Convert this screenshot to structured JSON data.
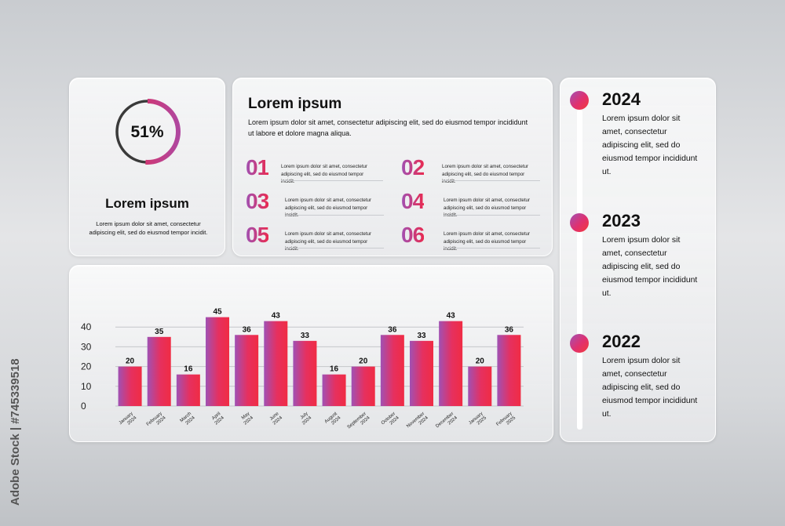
{
  "summary": {
    "percent": 51,
    "percent_label": "51%",
    "title": "Lorem ipsum",
    "text": "Lorem ipsum dolor sit amet, consectetur adipiscing elit, sed do eiusmod tempor incidit."
  },
  "features": {
    "title": "Lorem ipsum",
    "text": "Lorem ipsum dolor sit amet, consectetur adipiscing elit, sed do eiusmod tempor incididunt ut labore et dolore magna aliqua.",
    "items": [
      {
        "num": "01",
        "text": "Lorem ipsum dolor sit amet, consectetur adipiscing elit, sed do eiusmod tempor incidit."
      },
      {
        "num": "02",
        "text": "Lorem ipsum dolor sit amet, consectetur adipiscing elit, sed do eiusmod tempor incidit."
      },
      {
        "num": "03",
        "text": "Lorem ipsum dolor sit amet, consectetur adipiscing elit, sed do eiusmod tempor incidit."
      },
      {
        "num": "04",
        "text": "Lorem ipsum dolor sit amet, consectetur adipiscing elit, sed do eiusmod tempor incidit."
      },
      {
        "num": "05",
        "text": "Lorem ipsum dolor sit amet, consectetur adipiscing elit, sed do eiusmod tempor incidit."
      },
      {
        "num": "06",
        "text": "Lorem ipsum dolor sit amet, consectetur adipiscing elit, sed do eiusmod tempor incidit."
      }
    ]
  },
  "timeline": [
    {
      "year": "2024",
      "text": "Lorem ipsum dolor sit amet, consectetur adipiscing elit, sed do eiusmod tempor incididunt ut."
    },
    {
      "year": "2023",
      "text": "Lorem ipsum dolor sit amet, consectetur adipiscing elit, sed do eiusmod tempor incididunt ut."
    },
    {
      "year": "2022",
      "text": "Lorem ipsum dolor sit amet, consectetur adipiscing elit, sed do eiusmod tempor incididunt ut."
    }
  ],
  "colors": {
    "gradient_start": "#a051b4",
    "gradient_end": "#f02c44",
    "ring_rest": "#3a3a3a"
  },
  "watermark": "#745339518",
  "chart_data": {
    "type": "bar",
    "categories": [
      [
        "January",
        "2024"
      ],
      [
        "February",
        "2024"
      ],
      [
        "March",
        "2024"
      ],
      [
        "April",
        "2024"
      ],
      [
        "May",
        "2024"
      ],
      [
        "June",
        "2024"
      ],
      [
        "July",
        "2024"
      ],
      [
        "August",
        "2024"
      ],
      [
        "September",
        "2024"
      ],
      [
        "October",
        "2024"
      ],
      [
        "November",
        "2024"
      ],
      [
        "December",
        "2024"
      ],
      [
        "January",
        "2025"
      ],
      [
        "February",
        "2025"
      ]
    ],
    "values": [
      20,
      35,
      16,
      45,
      36,
      43,
      33,
      16,
      20,
      36,
      33,
      43,
      20,
      36
    ],
    "y_ticks": [
      0,
      10,
      20,
      30,
      40
    ],
    "ylim": [
      0,
      45
    ],
    "grid": true,
    "data_labels": true
  }
}
